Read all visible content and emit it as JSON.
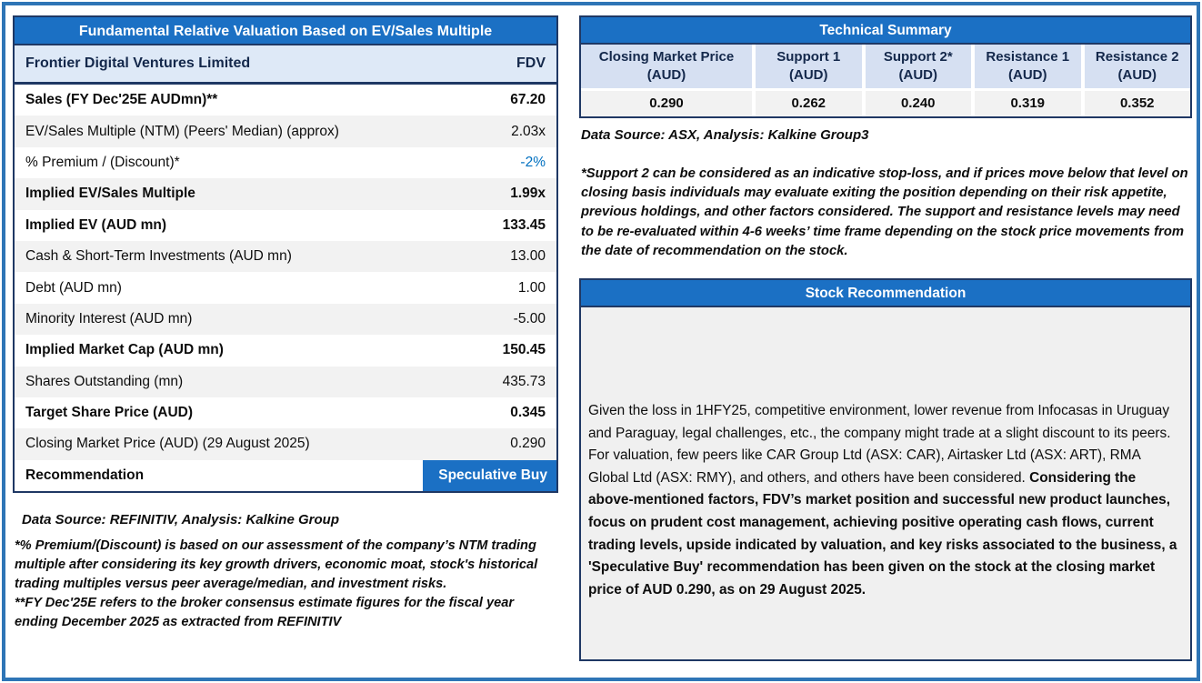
{
  "colors": {
    "header_blue": "#1b70c4",
    "border_navy": "#1f3864",
    "outer_frame_blue": "#2e75b6",
    "light_blue_row": "#dee9f7",
    "light_blue_header": "#d6e0f2",
    "alt_row_gray": "#f2f2f2",
    "panel_body_gray": "#f0f0f0",
    "accent_value_blue": "#0070c0"
  },
  "valuation_table": {
    "title": "Fundamental Relative Valuation Based on EV/Sales Multiple",
    "company_row": {
      "label": "Frontier Digital Ventures Limited",
      "value": "FDV"
    },
    "rows": [
      {
        "label": "Sales (FY Dec'25E AUDmn)**",
        "value": "67.20"
      },
      {
        "label": "EV/Sales Multiple (NTM)  (Peers' Median) (approx)",
        "value": "2.03x"
      },
      {
        "label": "% Premium / (Discount)*",
        "value": "-2%"
      },
      {
        "label": "Implied EV/Sales Multiple",
        "value": "1.99x"
      },
      {
        "label": "Implied EV (AUD mn)",
        "value": "133.45"
      },
      {
        "label": "Cash  & Short-Term Investments (AUD mn)",
        "value": "13.00"
      },
      {
        "label": "Debt (AUD mn)",
        "value": "1.00"
      },
      {
        "label": "Minority Interest (AUD mn)",
        "value": "-5.00"
      },
      {
        "label": "Implied Market Cap (AUD mn)",
        "value": "150.45"
      },
      {
        "label": "Shares Outstanding (mn)",
        "value": "435.73"
      },
      {
        "label": "Target Share Price (AUD)",
        "value": "0.345"
      },
      {
        "label": "Closing Market Price (AUD) (29 August 2025)",
        "value": "0.290"
      }
    ],
    "recommendation_row": {
      "label": "Recommendation",
      "value": "Speculative Buy"
    },
    "data_source": "Data Source: REFINITIV, Analysis: Kalkine Group",
    "footnote_1": "*% Premium/(Discount) is based on our assessment of the company’s NTM trading multiple after considering its key growth drivers, economic moat, stock's historical trading multiples versus peer average/median, and investment risks.",
    "footnote_2": "**FY Dec'25E refers to the broker consensus estimate figures for the fiscal year ending December 2025 as extracted from REFINITIV"
  },
  "technical_summary": {
    "title": "Technical Summary",
    "columns": [
      {
        "name": "Closing Market Price",
        "unit": "(AUD)",
        "value": "0.290"
      },
      {
        "name": "Support 1",
        "unit": "(AUD)",
        "value": "0.262"
      },
      {
        "name": "Support 2*",
        "unit": "(AUD)",
        "value": "0.240"
      },
      {
        "name": "Resistance 1",
        "unit": "(AUD)",
        "value": "0.319"
      },
      {
        "name": "Resistance 2",
        "unit": "(AUD)",
        "value": "0.352"
      }
    ],
    "data_source": "Data Source: ASX, Analysis: Kalkine Group3",
    "support_note": "*Support 2 can be considered as an indicative stop-loss, and if prices move below that level on closing basis individuals may evaluate exiting the position depending on their risk appetite, previous holdings, and other factors considered. The support and resistance levels may need to be re-evaluated within 4-6 weeks’ time frame depending on the stock price movements from the date of recommendation on the stock."
  },
  "stock_recommendation": {
    "title": "Stock Recommendation",
    "body_regular": "Given the loss in 1HFY25, competitive environment, lower revenue from Infocasas in Uruguay and Paraguay, legal challenges, etc., the company might trade at a slight discount to its peers. For valuation, few peers like CAR Group Ltd (ASX: CAR), Airtasker Ltd (ASX: ART), RMA Global Ltd (ASX: RMY), and others, and others have been considered. ",
    "body_bold": "Considering the above-mentioned factors, FDV’s market position and successful new product launches, focus on prudent cost management, achieving positive operating cash flows, current trading levels, upside indicated by valuation, and key risks associated to the business, a 'Speculative Buy' recommendation has been given on the stock at the closing market price of AUD 0.290, as on 29 August 2025."
  }
}
